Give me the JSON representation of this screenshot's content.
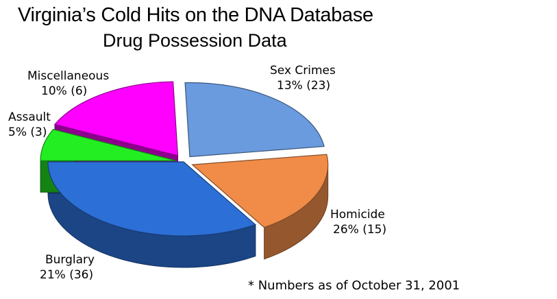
{
  "chart_data": {
    "type": "pie",
    "title": "Virginia’s Cold Hits on the DNA Database",
    "subtitle": "Drug Possession Data",
    "style": "3d-exploded",
    "slices": [
      {
        "label": "Sex Crimes",
        "percent_label": "13% (23)",
        "percent": 13,
        "count": 23,
        "color": "#6A9BDE"
      },
      {
        "label": "Homicide",
        "percent_label": "26% (15)",
        "percent": 26,
        "count": 15,
        "color": "#F08C48"
      },
      {
        "label": "Burglary",
        "percent_label": "21% (36)",
        "percent": 21,
        "count": 36,
        "color": "#2C6FD6"
      },
      {
        "label": "Assault",
        "percent_label": "5% (3)",
        "percent": 5,
        "count": 3,
        "color": "#22EE22"
      },
      {
        "label": "Miscellaneous",
        "percent_label": "10% (6)",
        "percent": 10,
        "count": 6,
        "color": "#FF00FF"
      }
    ],
    "footnote": "* Numbers as of October 31, 2001"
  }
}
